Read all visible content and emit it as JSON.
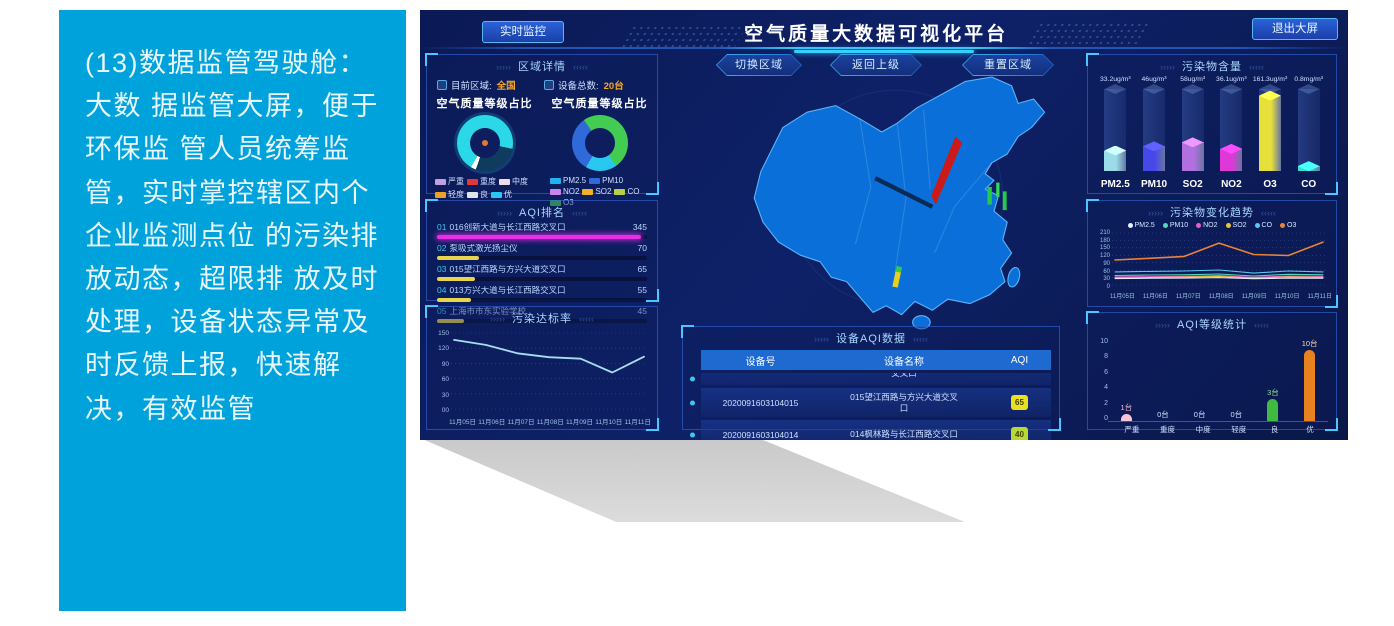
{
  "note": {
    "text": "(13)数据监管驾驶舱：大数 据监管大屏，便于环保监 管人员统筹监管，实时掌控辖区内个企业监测点位 的污染排放动态，超限排 放及时处理，设备状态异常及时反馈上报，快速解 决，有效监管",
    "bg_color": "#00a2dc"
  },
  "header": {
    "title": "空气质量大数据可视化平台",
    "live_button": "实时监控",
    "exit_button": "退出大屏"
  },
  "map": {
    "buttons": [
      "切换区域",
      "返回上级",
      "重置区域"
    ]
  },
  "region_panel": {
    "title": "区域详情",
    "stats": [
      {
        "label": "目前区域:",
        "value": "全国"
      },
      {
        "label": "设备总数:",
        "value": "20台"
      }
    ],
    "donut1": {
      "title": "空气质量等级占比",
      "segments": [
        {
          "color": "#2ad8e8",
          "pct": 70
        },
        {
          "color": "#0f3c5e",
          "pct": 27
        },
        {
          "color": "#ffffff",
          "pct": 3
        }
      ],
      "legend": [
        {
          "label": "严重",
          "color": "#c0a0e0"
        },
        {
          "label": "重度",
          "color": "#e03838"
        },
        {
          "label": "中度",
          "color": "#f0dce8"
        },
        {
          "label": "轻度",
          "color": "#f0a028"
        },
        {
          "label": "良",
          "color": "#dfe4ea"
        },
        {
          "label": "优",
          "color": "#28c8f0"
        }
      ]
    },
    "donut2": {
      "title": "空气质量等级占比",
      "segments": [
        {
          "color": "#2f6ad8",
          "pct": 32
        },
        {
          "color": "#42cc52",
          "pct": 50
        },
        {
          "color": "#29c8f0",
          "pct": 18
        }
      ],
      "legend": [
        {
          "label": "PM2.5",
          "color": "#1fb4f0"
        },
        {
          "label": "PM10",
          "color": "#2f6ad8"
        },
        {
          "label": "NO2",
          "color": "#c884e8"
        },
        {
          "label": "SO2",
          "color": "#f0b028"
        },
        {
          "label": "CO",
          "color": "#b8d045"
        },
        {
          "label": "O3",
          "color": "#42cc52"
        }
      ]
    }
  },
  "aqi_rank_panel": {
    "title": "AQI排名",
    "rows": [
      {
        "rank": "01",
        "name": "016创新大道与长江西路交叉口",
        "value": 345,
        "pct": 97,
        "color": "#e62fe6",
        "glow": true
      },
      {
        "rank": "02",
        "name": "泵吸式激光扬尘仪",
        "value": 70,
        "pct": 20,
        "color": "#e8d44d",
        "glow": false
      },
      {
        "rank": "03",
        "name": "015望江西路与方兴大道交叉口",
        "value": 65,
        "pct": 18,
        "color": "#e8d44d",
        "glow": false
      },
      {
        "rank": "04",
        "name": "013方兴大道与长江西路交叉口",
        "value": 55,
        "pct": 16,
        "color": "#e8d44d",
        "glow": false
      },
      {
        "rank": "05",
        "name": "上海市市东实验学校",
        "value": 45,
        "pct": 13,
        "color": "#e8d44d",
        "glow": false
      }
    ]
  },
  "compliance_panel": {
    "title": "污染达标率",
    "y_ticks": [
      "150",
      "120",
      "90",
      "60",
      "30",
      "00"
    ],
    "x_labels": [
      "11月05日",
      "11月06日",
      "11月07日",
      "11月08日",
      "11月09日",
      "11月10日",
      "11月11日"
    ],
    "values": [
      140,
      130,
      113,
      105,
      102,
      74,
      106
    ],
    "ymax": 150,
    "line_color": "#a8dcf0"
  },
  "device_table": {
    "title": "设备AQI数据",
    "headers": [
      "设备号",
      "设备名称",
      "AQI"
    ],
    "partial_row": {
      "id": "",
      "name": "交叉口",
      "aqi": ""
    },
    "rows": [
      {
        "id": "2020091603104015",
        "name": "015望江西路与方兴大道交叉口",
        "aqi": "65",
        "aqi_color": "#e8e020"
      },
      {
        "id": "2020091603104014",
        "name": "014枫林路与长江西路交叉口",
        "aqi": "40",
        "aqi_color": "#b8d838"
      }
    ]
  },
  "pollutant_panel": {
    "title": "污染物含量",
    "bars": [
      {
        "label": "PM2.5",
        "value": "33.2ug/m³",
        "pct": 25,
        "color": "#9adce8"
      },
      {
        "label": "PM10",
        "value": "46ug/m³",
        "pct": 30,
        "color": "#4848e8"
      },
      {
        "label": "SO2",
        "value": "58ug/m³",
        "pct": 35,
        "color": "#b070e0"
      },
      {
        "label": "NO2",
        "value": "36.1ug/m³",
        "pct": 27,
        "color": "#e038d8"
      },
      {
        "label": "O3",
        "value": "161.3ug/m³",
        "pct": 92,
        "color": "#e8e03a"
      },
      {
        "label": "CO",
        "value": "0.8mg/m³",
        "pct": 6,
        "color": "#38e0d0"
      }
    ]
  },
  "trend_panel": {
    "title": "污染物变化趋势",
    "legend": [
      {
        "label": "PM2.5",
        "color": "#e8f0ff"
      },
      {
        "label": "PM10",
        "color": "#52d8b8"
      },
      {
        "label": "NO2",
        "color": "#e85cc8"
      },
      {
        "label": "SO2",
        "color": "#e8c23d"
      },
      {
        "label": "CO",
        "color": "#5ac8f0"
      },
      {
        "label": "O3",
        "color": "#e8833a"
      }
    ],
    "y_ticks": [
      "210",
      "180",
      "150",
      "120",
      "90",
      "60",
      "30",
      "0"
    ],
    "x_labels": [
      "11月05日",
      "11月06日",
      "11月07日",
      "11月08日",
      "11月09日",
      "11月10日",
      "11月11日"
    ],
    "ymax": 210,
    "series": [
      {
        "name": "O3",
        "color": "#e8833a",
        "width": 1.6,
        "values": [
          105,
          112,
          120,
          176,
          128,
          124,
          180
        ]
      },
      {
        "name": "PM2.5",
        "color": "#5ac8f0",
        "width": 1.1,
        "values": [
          55,
          57,
          59,
          63,
          50,
          59,
          55
        ]
      },
      {
        "name": "PM10",
        "color": "#52d8b8",
        "width": 1.1,
        "values": [
          40,
          42,
          43,
          46,
          38,
          45,
          43
        ]
      },
      {
        "name": "NO2",
        "color": "#e85cc8",
        "width": 1.1,
        "values": [
          34,
          35,
          36,
          40,
          32,
          38,
          36
        ]
      },
      {
        "name": "SO2",
        "color": "#e8c23d",
        "width": 1.1,
        "values": [
          30,
          31,
          33,
          36,
          29,
          34,
          32
        ]
      },
      {
        "name": "CO",
        "color": "#e8f0ff",
        "width": 1.0,
        "values": [
          27,
          28,
          29,
          31,
          26,
          29,
          28
        ]
      }
    ]
  },
  "aqi_level_panel": {
    "title": "AQI等级统计",
    "y_ticks": [
      "10",
      "8",
      "6",
      "4",
      "2",
      "0"
    ],
    "categories": [
      "严重",
      "重度",
      "中度",
      "轻度",
      "良",
      "优"
    ],
    "value_labels": [
      "1台",
      "0台",
      "0台",
      "0台",
      "3台",
      "10台"
    ],
    "values": [
      1,
      0,
      0,
      0,
      3,
      10
    ],
    "ymax": 10,
    "bar_colors": [
      "#f5c6d8",
      "#f5c6d8",
      "#f5c6d8",
      "#f5c6d8",
      "#3fbb3f",
      "#e8821e"
    ],
    "label_colors": [
      "#f5b8cc",
      "#cfe0ff",
      "#cfe0ff",
      "#cfe0ff",
      "#8fe08f",
      "#ffd9a8"
    ]
  }
}
